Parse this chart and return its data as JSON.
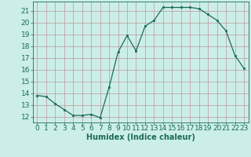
{
  "x": [
    0,
    1,
    2,
    3,
    4,
    5,
    6,
    7,
    8,
    9,
    10,
    11,
    12,
    13,
    14,
    15,
    16,
    17,
    18,
    19,
    20,
    21,
    22,
    23
  ],
  "y": [
    13.8,
    13.7,
    13.1,
    12.6,
    12.1,
    12.1,
    12.2,
    11.9,
    14.5,
    17.5,
    18.9,
    17.6,
    19.7,
    20.2,
    21.3,
    21.3,
    21.3,
    21.3,
    21.2,
    20.7,
    20.2,
    19.3,
    17.2,
    16.1
  ],
  "xlabel": "Humidex (Indice chaleur)",
  "xlim": [
    -0.5,
    23.5
  ],
  "ylim": [
    11.5,
    21.8
  ],
  "yticks": [
    12,
    13,
    14,
    15,
    16,
    17,
    18,
    19,
    20,
    21
  ],
  "xticks": [
    0,
    1,
    2,
    3,
    4,
    5,
    6,
    7,
    8,
    9,
    10,
    11,
    12,
    13,
    14,
    15,
    16,
    17,
    18,
    19,
    20,
    21,
    22,
    23
  ],
  "line_color": "#1a6b5a",
  "marker_color": "#1a6b5a",
  "bg_color": "#cceee8",
  "grid_color": "#bb9999",
  "axis_color": "#1a6b5a",
  "label_color": "#1a6b5a",
  "tick_fontsize": 6.5,
  "xlabel_fontsize": 7.0
}
